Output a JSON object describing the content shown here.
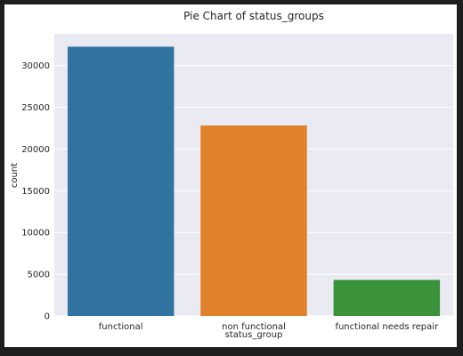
{
  "chart_data": {
    "type": "bar",
    "title": "Pie Chart of status_groups",
    "xlabel": "status_group",
    "ylabel": "count",
    "categories": [
      "functional",
      "non functional",
      "functional needs repair"
    ],
    "values": [
      32259,
      22824,
      4317
    ],
    "colors": [
      "#3274a1",
      "#e1812c",
      "#3a923a"
    ],
    "ylim": [
      0,
      33800
    ],
    "yticks": [
      0,
      5000,
      10000,
      15000,
      20000,
      25000,
      30000
    ],
    "grid": true,
    "background": "#eaeaf2",
    "legend": "none"
  }
}
